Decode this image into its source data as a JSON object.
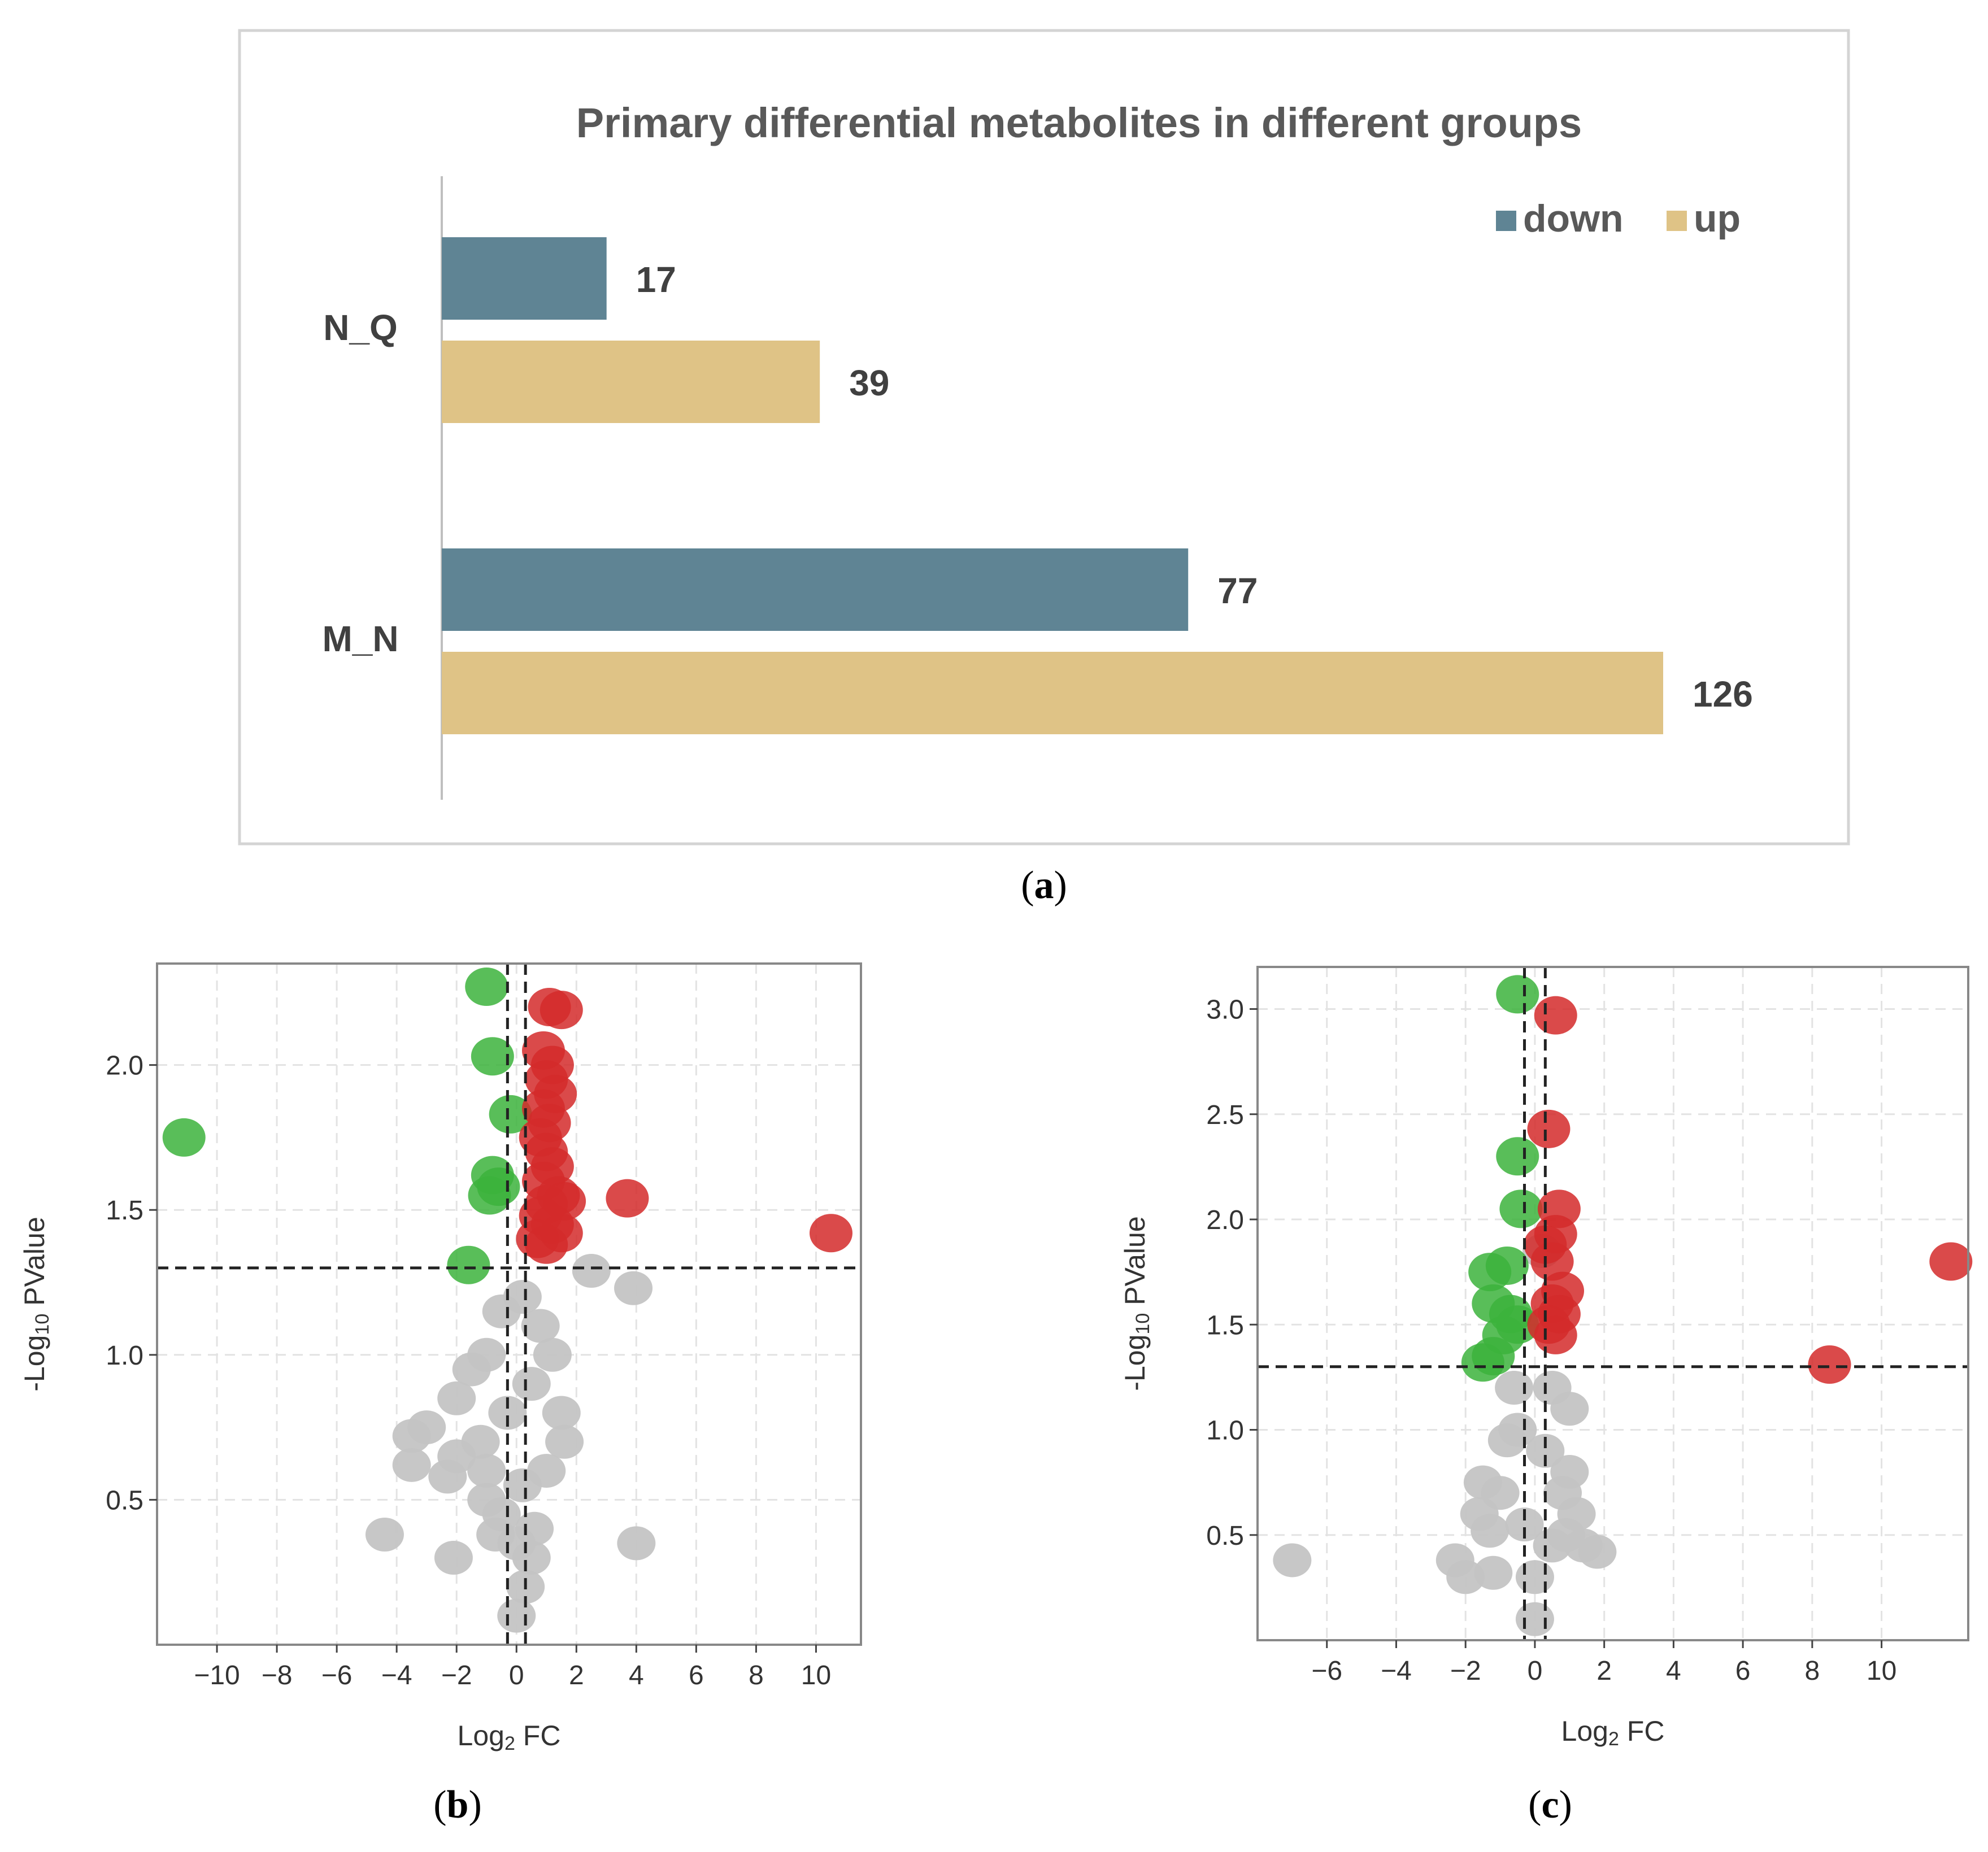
{
  "panel_labels": {
    "a": "a",
    "b": "b",
    "c": "c"
  },
  "chart_data": [
    {
      "type": "bar",
      "orientation": "horizontal",
      "title": "Primary differential metabolites in different groups",
      "categories": [
        "N_Q",
        "M_N"
      ],
      "series": [
        {
          "name": "down",
          "values": [
            17,
            77
          ],
          "color": "#5f8494"
        },
        {
          "name": "up",
          "values": [
            39,
            126
          ],
          "color": "#dfc386"
        }
      ],
      "legend": "top-right",
      "xlim": [
        0,
        126
      ]
    },
    {
      "type": "scatter",
      "title": "",
      "xlabel_main": "Log",
      "xlabel_sub": "2",
      "xlabel_rest": " FC",
      "ylabel_main": "-Log",
      "ylabel_sub": "10",
      "ylabel_rest": " PValue",
      "xlim": [
        -12,
        11.5
      ],
      "ylim": [
        0,
        2.35
      ],
      "xticks": [
        -10,
        -8,
        -6,
        -4,
        -2,
        0,
        2,
        4,
        6,
        8,
        10
      ],
      "xtick_labels": [
        "−10",
        "−8",
        "−6",
        "−4",
        "−2",
        "0",
        "2",
        "4",
        "6",
        "8",
        "10"
      ],
      "yticks": [
        0.5,
        1.0,
        1.5,
        2.0
      ],
      "ytick_labels": [
        "0.5",
        "1.0",
        "1.5",
        "2.0"
      ],
      "threshold_y": 1.3,
      "threshold_x": [
        -0.3,
        0.3
      ],
      "colors": {
        "down": "#3cb33c",
        "up": "#d42a2a",
        "ns": "#c4c4c4"
      },
      "grid": true,
      "points": {
        "down": [
          [
            -11.1,
            1.75
          ],
          [
            -1.0,
            2.27
          ],
          [
            -0.8,
            2.03
          ],
          [
            -0.2,
            1.83
          ],
          [
            -0.8,
            1.62
          ],
          [
            -0.9,
            1.55
          ],
          [
            -0.6,
            1.58
          ],
          [
            -1.6,
            1.31
          ]
        ],
        "up": [
          [
            1.1,
            2.2
          ],
          [
            1.5,
            2.19
          ],
          [
            0.9,
            2.05
          ],
          [
            1.2,
            2.0
          ],
          [
            1.0,
            1.95
          ],
          [
            1.3,
            1.9
          ],
          [
            0.9,
            1.85
          ],
          [
            1.1,
            1.8
          ],
          [
            0.8,
            1.75
          ],
          [
            1.0,
            1.7
          ],
          [
            1.2,
            1.65
          ],
          [
            0.9,
            1.6
          ],
          [
            1.4,
            1.55
          ],
          [
            1.0,
            1.52
          ],
          [
            1.6,
            1.53
          ],
          [
            0.8,
            1.48
          ],
          [
            1.2,
            1.45
          ],
          [
            1.5,
            1.42
          ],
          [
            0.7,
            1.4
          ],
          [
            1.0,
            1.38
          ],
          [
            3.7,
            1.54
          ],
          [
            10.5,
            1.42
          ]
        ],
        "ns": [
          [
            2.5,
            1.29
          ],
          [
            3.9,
            1.23
          ],
          [
            0.2,
            1.2
          ],
          [
            -0.5,
            1.15
          ],
          [
            0.8,
            1.1
          ],
          [
            -1.5,
            0.95
          ],
          [
            -2.0,
            0.85
          ],
          [
            1.5,
            0.8
          ],
          [
            -3.0,
            0.75
          ],
          [
            -3.5,
            0.72
          ],
          [
            -3.5,
            0.62
          ],
          [
            -2.3,
            0.58
          ],
          [
            -2.0,
            0.65
          ],
          [
            1.6,
            0.7
          ],
          [
            -1.0,
            0.5
          ],
          [
            -0.5,
            0.45
          ],
          [
            0.0,
            0.35
          ],
          [
            0.5,
            0.3
          ],
          [
            0.3,
            0.2
          ],
          [
            0.0,
            0.1
          ],
          [
            -4.4,
            0.38
          ],
          [
            -2.1,
            0.3
          ],
          [
            4.0,
            0.35
          ],
          [
            -1.0,
            1.0
          ],
          [
            0.5,
            0.9
          ],
          [
            -0.3,
            0.8
          ],
          [
            1.0,
            0.6
          ],
          [
            -1.2,
            0.7
          ],
          [
            0.2,
            0.55
          ],
          [
            -0.7,
            0.38
          ],
          [
            0.6,
            0.4
          ],
          [
            1.2,
            1.0
          ],
          [
            -1.0,
            0.6
          ]
        ]
      }
    },
    {
      "type": "scatter",
      "title": "",
      "xlabel_main": "Log",
      "xlabel_sub": "2",
      "xlabel_rest": " FC",
      "ylabel_main": "-Log",
      "ylabel_sub": "10",
      "ylabel_rest": " PValue",
      "xlim": [
        -8,
        12.5
      ],
      "ylim": [
        0,
        3.2
      ],
      "xticks": [
        -6,
        -4,
        -2,
        0,
        2,
        4,
        6,
        8,
        10
      ],
      "xtick_labels": [
        "−6",
        "−4",
        "−2",
        "0",
        "2",
        "4",
        "6",
        "8",
        "10"
      ],
      "yticks": [
        0.5,
        1.0,
        1.5,
        2.0,
        2.5,
        3.0
      ],
      "ytick_labels": [
        "0.5",
        "1.0",
        "1.5",
        "2.0",
        "2.5",
        "3.0"
      ],
      "threshold_y": 1.3,
      "threshold_x": [
        -0.3,
        0.3
      ],
      "colors": {
        "down": "#3cb33c",
        "up": "#d42a2a",
        "ns": "#c4c4c4"
      },
      "grid": true,
      "points": {
        "down": [
          [
            -0.5,
            3.07
          ],
          [
            -0.5,
            2.3
          ],
          [
            -0.4,
            2.05
          ],
          [
            -1.3,
            1.75
          ],
          [
            -0.8,
            1.78
          ],
          [
            -1.2,
            1.6
          ],
          [
            -0.7,
            1.55
          ],
          [
            -0.5,
            1.5
          ],
          [
            -0.9,
            1.45
          ],
          [
            -1.2,
            1.35
          ],
          [
            -1.5,
            1.32
          ]
        ],
        "up": [
          [
            0.6,
            2.97
          ],
          [
            0.4,
            2.43
          ],
          [
            0.7,
            2.05
          ],
          [
            0.6,
            1.93
          ],
          [
            0.3,
            1.88
          ],
          [
            0.5,
            1.8
          ],
          [
            0.8,
            1.66
          ],
          [
            0.5,
            1.6
          ],
          [
            0.7,
            1.55
          ],
          [
            0.4,
            1.5
          ],
          [
            0.6,
            1.45
          ],
          [
            12.0,
            1.8
          ],
          [
            8.5,
            1.31
          ]
        ],
        "ns": [
          [
            0.2,
            1.85
          ],
          [
            0.5,
            1.2
          ],
          [
            -0.5,
            1.0
          ],
          [
            1.0,
            0.8
          ],
          [
            -1.5,
            0.75
          ],
          [
            -1.0,
            0.7
          ],
          [
            0.8,
            0.7
          ],
          [
            1.2,
            0.6
          ],
          [
            -1.3,
            0.52
          ],
          [
            1.8,
            0.42
          ],
          [
            -2.3,
            0.38
          ],
          [
            -7.0,
            0.38
          ],
          [
            -2.0,
            0.3
          ],
          [
            -1.2,
            0.32
          ],
          [
            0.0,
            0.1
          ],
          [
            0.0,
            0.3
          ],
          [
            -0.3,
            0.55
          ],
          [
            0.3,
            0.9
          ],
          [
            -0.6,
            1.2
          ],
          [
            1.0,
            1.1
          ],
          [
            -1.6,
            0.6
          ],
          [
            0.5,
            0.45
          ],
          [
            -0.8,
            0.95
          ],
          [
            0.9,
            0.5
          ],
          [
            1.4,
            0.45
          ]
        ]
      }
    }
  ]
}
